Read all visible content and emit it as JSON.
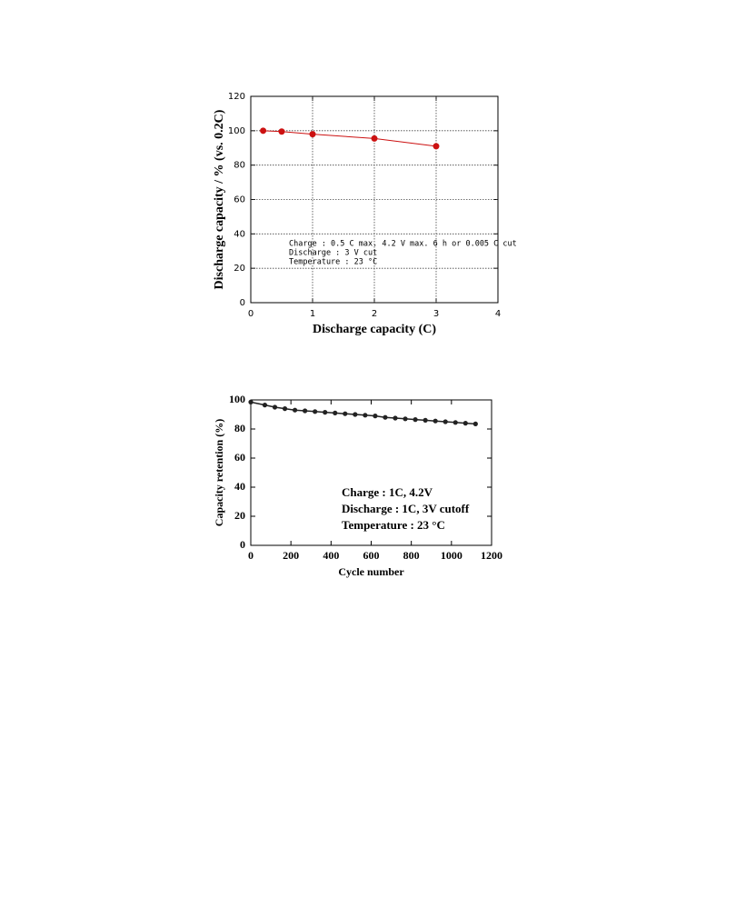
{
  "chart_data": [
    {
      "type": "line",
      "x_label": "Discharge capacity (C)",
      "y_label": "Discharge capacity / % (vs. 0.2C)",
      "annotations": [
        "Charge : 0.5 C max. 4.2 V max. 6 h or 0.005 C cut",
        "Discharge : 3 V cut",
        "Temperature : 23 °C"
      ],
      "series": [
        {
          "color": "#cc1111",
          "x": [
            0.2,
            0.5,
            1,
            2,
            3
          ],
          "values": [
            100,
            99.5,
            98,
            95.5,
            91
          ]
        }
      ],
      "xlim": [
        0,
        4
      ],
      "xticks": [
        0,
        1,
        2,
        3,
        4
      ],
      "ylim": [
        0,
        120
      ],
      "yticks": [
        0,
        20,
        40,
        60,
        80,
        100,
        120
      ],
      "grid": true
    },
    {
      "type": "line",
      "x_label": "Cycle number",
      "y_label": "Capacity retention (%)",
      "annotations": [
        "Charge : 1C, 4.2V",
        "Discharge : 1C, 3V cutoff",
        "Temperature : 23 °C"
      ],
      "series": [
        {
          "color": "#222222",
          "x": [
            0,
            70,
            120,
            170,
            220,
            270,
            320,
            370,
            420,
            470,
            520,
            570,
            620,
            670,
            720,
            770,
            820,
            870,
            920,
            970,
            1020,
            1070,
            1120
          ],
          "values": [
            98.5,
            96.5,
            95,
            94,
            93,
            92.5,
            92,
            91.5,
            91,
            90.5,
            90,
            89.5,
            89,
            88,
            87.5,
            87,
            86.5,
            86,
            85.5,
            85,
            84.5,
            84,
            83.5
          ]
        }
      ],
      "xlim": [
        0,
        1200
      ],
      "xticks": [
        0,
        200,
        400,
        600,
        800,
        1000,
        1200
      ],
      "ylim": [
        0,
        100
      ],
      "yticks": [
        0,
        20,
        40,
        60,
        80,
        100
      ],
      "grid": false
    }
  ]
}
